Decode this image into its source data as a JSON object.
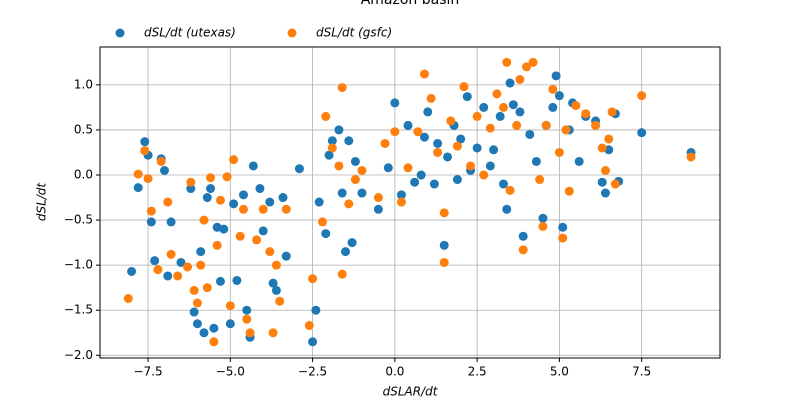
{
  "chart_data": {
    "type": "scatter",
    "title": "Amazon basin",
    "x_label": "dSLAR/dt",
    "y_label": "dSL/dt",
    "xlim": [
      -8.96,
      9.88
    ],
    "ylim": [
      -2.03,
      1.42
    ],
    "xticks": [
      {
        "value": -7.5,
        "label": "−7.5"
      },
      {
        "value": -5,
        "label": "−5.0"
      },
      {
        "value": -2.5,
        "label": "−2.5"
      },
      {
        "value": 0,
        "label": "0.0"
      },
      {
        "value": 2.5,
        "label": "2.5"
      },
      {
        "value": 5,
        "label": "5.0"
      },
      {
        "value": 7.5,
        "label": "7.5"
      }
    ],
    "yticks": [
      {
        "value": -2,
        "label": "−2.0"
      },
      {
        "value": -1.5,
        "label": "−1.5"
      },
      {
        "value": -1,
        "label": "−1.0"
      },
      {
        "value": -0.5,
        "label": "−0.5"
      },
      {
        "value": 0,
        "label": "0.0"
      },
      {
        "value": 0.5,
        "label": "0.5"
      },
      {
        "value": 1,
        "label": "1.0"
      }
    ],
    "grid": true,
    "legend": "top-left",
    "series": [
      {
        "name": "dSL/dt (utexas)",
        "color": "#1f77b4",
        "x": [
          -8.0,
          -7.8,
          -7.6,
          -7.5,
          -7.4,
          -7.3,
          -7.1,
          -7.0,
          -6.9,
          -6.8,
          -6.5,
          -6.2,
          -6.1,
          -6.0,
          -5.9,
          -5.8,
          -5.7,
          -5.6,
          -5.5,
          -5.4,
          -5.3,
          -5.2,
          -5.0,
          -4.9,
          -4.8,
          -4.6,
          -4.5,
          -4.4,
          -4.3,
          -4.1,
          -4.0,
          -3.8,
          -3.7,
          -3.6,
          -3.4,
          -3.3,
          -2.9,
          -2.5,
          -2.4,
          -2.3,
          -2.1,
          -2.0,
          -1.9,
          -1.7,
          -1.6,
          -1.5,
          -1.4,
          -1.3,
          -1.2,
          -1.0,
          -0.5,
          -0.2,
          0.0,
          0.2,
          0.4,
          0.6,
          0.8,
          0.9,
          1.0,
          1.2,
          1.3,
          1.5,
          1.6,
          1.8,
          1.9,
          2.0,
          2.2,
          2.3,
          2.5,
          2.7,
          2.9,
          3.0,
          3.2,
          3.3,
          3.4,
          3.5,
          3.6,
          3.8,
          3.9,
          4.1,
          4.3,
          4.5,
          4.6,
          4.8,
          4.9,
          5.0,
          5.1,
          5.3,
          5.4,
          5.6,
          5.8,
          6.1,
          6.3,
          6.4,
          6.5,
          6.7,
          6.8,
          7.5,
          9.0
        ],
        "values": [
          -1.07,
          -0.14,
          0.37,
          0.22,
          -0.52,
          -0.95,
          0.18,
          0.05,
          -1.12,
          -0.52,
          -0.97,
          -0.15,
          -1.52,
          -1.65,
          -0.85,
          -1.75,
          -0.25,
          -0.15,
          -1.7,
          -0.58,
          -1.18,
          -0.6,
          -1.65,
          -0.32,
          -1.17,
          -0.22,
          -1.5,
          -1.8,
          0.1,
          -0.15,
          -0.62,
          -0.3,
          -1.2,
          -1.28,
          -0.25,
          -0.9,
          0.07,
          -1.85,
          -1.5,
          -0.3,
          -0.65,
          0.22,
          0.38,
          0.5,
          -0.2,
          -0.85,
          0.38,
          -0.75,
          0.15,
          -0.2,
          -0.38,
          0.08,
          0.8,
          -0.22,
          0.55,
          -0.08,
          0.0,
          0.42,
          0.7,
          -0.1,
          0.35,
          -0.78,
          0.2,
          0.55,
          -0.05,
          0.4,
          0.87,
          0.05,
          0.3,
          0.75,
          0.1,
          0.28,
          0.65,
          -0.1,
          -0.38,
          1.02,
          0.78,
          0.7,
          -0.68,
          0.45,
          0.15,
          -0.48,
          0.55,
          0.75,
          1.1,
          0.88,
          -0.58,
          0.5,
          0.8,
          0.15,
          0.65,
          0.6,
          -0.08,
          -0.2,
          0.28,
          0.68,
          -0.07,
          0.47,
          0.25
        ]
      },
      {
        "name": "dSL/dt (gsfc)",
        "color": "#ff7f0e",
        "x": [
          -8.1,
          -7.8,
          -7.6,
          -7.5,
          -7.4,
          -7.2,
          -7.1,
          -6.9,
          -6.8,
          -6.6,
          -6.3,
          -6.2,
          -6.1,
          -6.0,
          -5.9,
          -5.8,
          -5.7,
          -5.6,
          -5.5,
          -5.4,
          -5.3,
          -5.1,
          -5.0,
          -4.9,
          -4.7,
          -4.6,
          -4.5,
          -4.4,
          -4.2,
          -4.0,
          -3.8,
          -3.7,
          -3.6,
          -3.5,
          -3.3,
          -2.6,
          -2.5,
          -2.2,
          -2.1,
          -1.9,
          -1.7,
          -1.6,
          -1.6,
          -1.4,
          -1.2,
          -1.0,
          -0.5,
          -0.3,
          0.0,
          0.2,
          0.4,
          0.7,
          0.9,
          1.1,
          1.3,
          1.5,
          1.5,
          1.7,
          1.9,
          2.1,
          2.3,
          2.5,
          2.7,
          2.9,
          3.1,
          3.3,
          3.4,
          3.5,
          3.7,
          3.8,
          3.9,
          4.0,
          4.2,
          4.4,
          4.5,
          4.6,
          4.8,
          5.0,
          5.1,
          5.2,
          5.3,
          5.5,
          5.8,
          6.1,
          6.3,
          6.4,
          6.5,
          6.6,
          6.7,
          7.5,
          9.0
        ],
        "values": [
          -1.37,
          0.01,
          0.27,
          -0.04,
          -0.4,
          -1.05,
          0.15,
          -0.3,
          -0.88,
          -1.12,
          -1.02,
          -0.08,
          -1.28,
          -1.42,
          -1.0,
          -0.5,
          -1.25,
          -0.03,
          -1.85,
          -0.78,
          -0.28,
          -0.02,
          -1.45,
          0.17,
          -0.68,
          -0.38,
          -1.6,
          -1.75,
          -0.72,
          -0.38,
          -0.85,
          -1.75,
          -1.0,
          -1.4,
          -0.38,
          -1.67,
          -1.15,
          -0.52,
          0.65,
          0.3,
          0.1,
          0.97,
          -1.1,
          -0.32,
          -0.05,
          0.05,
          -0.25,
          0.35,
          0.48,
          -0.3,
          0.08,
          0.48,
          1.12,
          0.85,
          0.25,
          -0.97,
          -0.42,
          0.6,
          0.32,
          0.98,
          0.1,
          0.65,
          0.0,
          0.52,
          0.9,
          0.75,
          1.25,
          -0.17,
          0.55,
          1.06,
          -0.83,
          1.2,
          1.25,
          -0.05,
          -0.57,
          0.55,
          0.95,
          0.25,
          -0.7,
          0.5,
          -0.18,
          0.77,
          0.68,
          0.55,
          0.3,
          0.05,
          0.4,
          0.7,
          -0.1,
          0.88,
          0.2
        ]
      }
    ]
  }
}
